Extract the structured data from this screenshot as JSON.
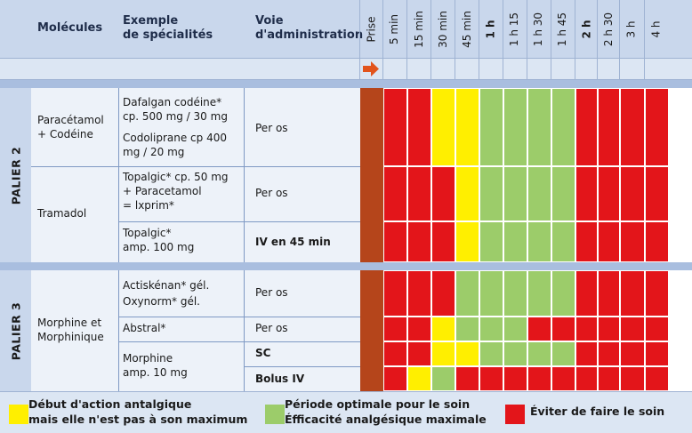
{
  "colors": {
    "prise": "#b5451b",
    "red": "#e3151a",
    "yellow": "#ffef00",
    "green": "#9ccc6a"
  },
  "header": {
    "molecules": "Molécules",
    "exemple": [
      "Exemple",
      "de spécialités"
    ],
    "voie": [
      "Voie",
      "d'administration"
    ],
    "prise": "Prise",
    "times": [
      "5 min",
      "15 min",
      "30 min",
      "45 min",
      "1 h",
      "1 h 15",
      "1 h 30",
      "1 h 45",
      "2 h",
      "2 h 30",
      "3 h",
      "4 h"
    ],
    "bold_times": [
      "1 h",
      "2 h"
    ],
    "arrow_icon": "right-arrow-icon"
  },
  "paliers": [
    "PALIER 2",
    "PALIER 3"
  ],
  "rows": [
    {
      "id": "dafalgan",
      "molecule": [
        "Paracétamol",
        "+ Codéine"
      ],
      "exemple": [
        "Dafalgan codéine*",
        "cp. 500 mg / 30 mg",
        "Codoliprane cp 400",
        "mg / 20 mg"
      ],
      "voie": "Per os",
      "voie_bold": false,
      "cells": [
        "R",
        "R",
        "R",
        "Y",
        "Y",
        "G",
        "G",
        "G",
        "G",
        "R",
        "R",
        "R",
        "R"
      ]
    },
    {
      "id": "topalgic-cp",
      "molecule": [
        "Tramadol"
      ],
      "exemple": [
        "Topalgic* cp. 50 mg",
        "+ Paracetamol",
        "= lxprim*"
      ],
      "voie": "Per os",
      "voie_bold": false,
      "cells": [
        "R",
        "R",
        "R",
        "R",
        "Y",
        "G",
        "G",
        "G",
        "G",
        "R",
        "R",
        "R",
        "R"
      ]
    },
    {
      "id": "topalgic-amp",
      "molecule": [],
      "exemple": [
        "Topalgic*",
        "amp. 100 mg"
      ],
      "voie": "IV en 45 min",
      "voie_bold": true,
      "cells": [
        "R",
        "R",
        "R",
        "R",
        "Y",
        "G",
        "G",
        "G",
        "G",
        "R",
        "R",
        "R",
        "R"
      ]
    },
    {
      "id": "actiskenan",
      "molecule": [
        "Morphine et",
        "Morphinique"
      ],
      "exemple": [
        "Actiskénan* gél.",
        "Oxynorm* gél."
      ],
      "voie": "Per os",
      "voie_bold": false,
      "cells": [
        "R",
        "R",
        "R",
        "R",
        "G",
        "G",
        "G",
        "G",
        "G",
        "R",
        "R",
        "R",
        "R"
      ]
    },
    {
      "id": "abstral",
      "molecule": [],
      "exemple": [
        "Abstral*"
      ],
      "voie": "Per os",
      "voie_bold": false,
      "cells": [
        "R",
        "R",
        "R",
        "Y",
        "G",
        "G",
        "G",
        "R",
        "R",
        "R",
        "R",
        "R",
        "R"
      ]
    },
    {
      "id": "morphine-sc",
      "molecule": [],
      "exemple": [
        "Morphine",
        "amp. 10 mg"
      ],
      "voie": "SC",
      "voie_bold": true,
      "cells": [
        "R",
        "R",
        "R",
        "Y",
        "Y",
        "G",
        "G",
        "G",
        "G",
        "R",
        "R",
        "R",
        "R"
      ]
    },
    {
      "id": "morphine-iv",
      "molecule": [],
      "exemple": [],
      "voie": "Bolus IV",
      "voie_bold": true,
      "cells": [
        "R",
        "R",
        "Y",
        "G",
        "R",
        "R",
        "R",
        "R",
        "R",
        "R",
        "R",
        "R",
        "R"
      ]
    }
  ],
  "legend": [
    {
      "color": "yellow",
      "lines": [
        "Début d'action antalgique",
        "mais elle n'est pas à son maximum"
      ]
    },
    {
      "color": "green",
      "lines": [
        "Période optimale pour le soin",
        "Éfficacité analgésique maximale"
      ]
    },
    {
      "color": "red",
      "lines": [
        "Éviter de faire le soin"
      ]
    }
  ]
}
